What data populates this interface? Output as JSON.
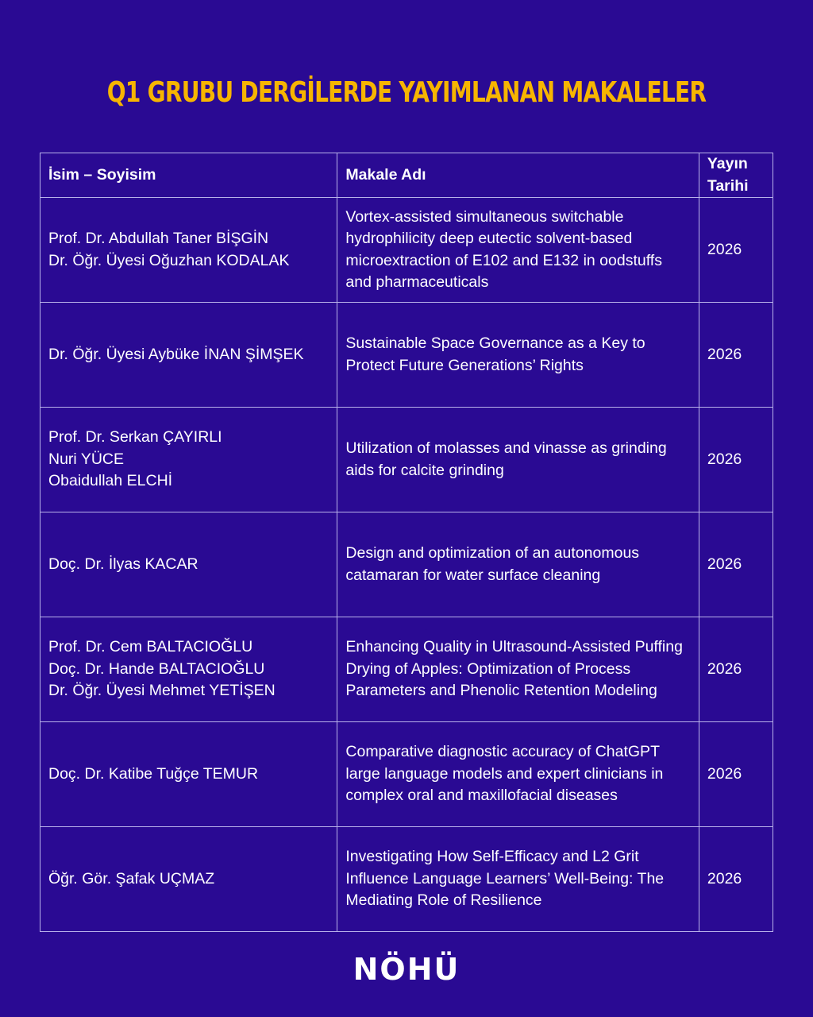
{
  "title": "Q1 GRUBU DERGİLERDE YAYIMLANAN MAKALELER",
  "colors": {
    "background": "#2a0a93",
    "title": "#f7b500",
    "border": "#b9b2ea",
    "text": "#ffffff"
  },
  "table": {
    "headers": [
      "İsim – Soyisim",
      "Makale Adı",
      "Yayın Tarihi"
    ],
    "rows": [
      {
        "names": [
          "Prof. Dr. Abdullah Taner BİŞGİN",
          "Dr. Öğr. Üyesi Oğuzhan KODALAK"
        ],
        "article": "Vortex-assisted simultaneous switchable hydrophilicity deep eutectic solvent-based microextraction of E102 and E132 in oodstuffs and pharmaceuticals",
        "year": "2026"
      },
      {
        "names": [
          "Dr. Öğr. Üyesi Aybüke İNAN ŞİMŞEK"
        ],
        "article": "Sustainable Space Governance as a Key to Protect Future Generations’ Rights",
        "year": "2026"
      },
      {
        "names": [
          "Prof. Dr. Serkan ÇAYIRLI",
          "Nuri YÜCE",
          "Obaidullah ELCHİ"
        ],
        "article": "Utilization of molasses and vinasse as grinding aids for calcite grinding",
        "year": "2026"
      },
      {
        "names": [
          "Doç. Dr. İlyas KACAR"
        ],
        "article": "Design and optimization of an autonomous catamaran for water surface cleaning",
        "year": "2026"
      },
      {
        "names": [
          "Prof. Dr. Cem BALTACIOĞLU",
          "Doç. Dr. Hande BALTACIOĞLU",
          "Dr. Öğr. Üyesi Mehmet YETİŞEN"
        ],
        "article": "Enhancing Quality in Ultrasound-Assisted Puffing Drying of Apples: Optimization of Process Parameters and Phenolic Retention Modeling",
        "year": "2026"
      },
      {
        "names": [
          "Doç. Dr. Katibe Tuğçe TEMUR"
        ],
        "article": "Comparative diagnostic accuracy of ChatGPT large language models and expert clinicians in complex oral and maxillofacial diseases",
        "year": "2026"
      },
      {
        "names": [
          "Öğr. Gör. Şafak UÇMAZ"
        ],
        "article": "Investigating How Self-Efficacy and L2 Grit Influence Language Learners’ Well-Being: The Mediating Role of Resilience",
        "year": "2026"
      }
    ]
  },
  "logo": "NÖHÜ"
}
